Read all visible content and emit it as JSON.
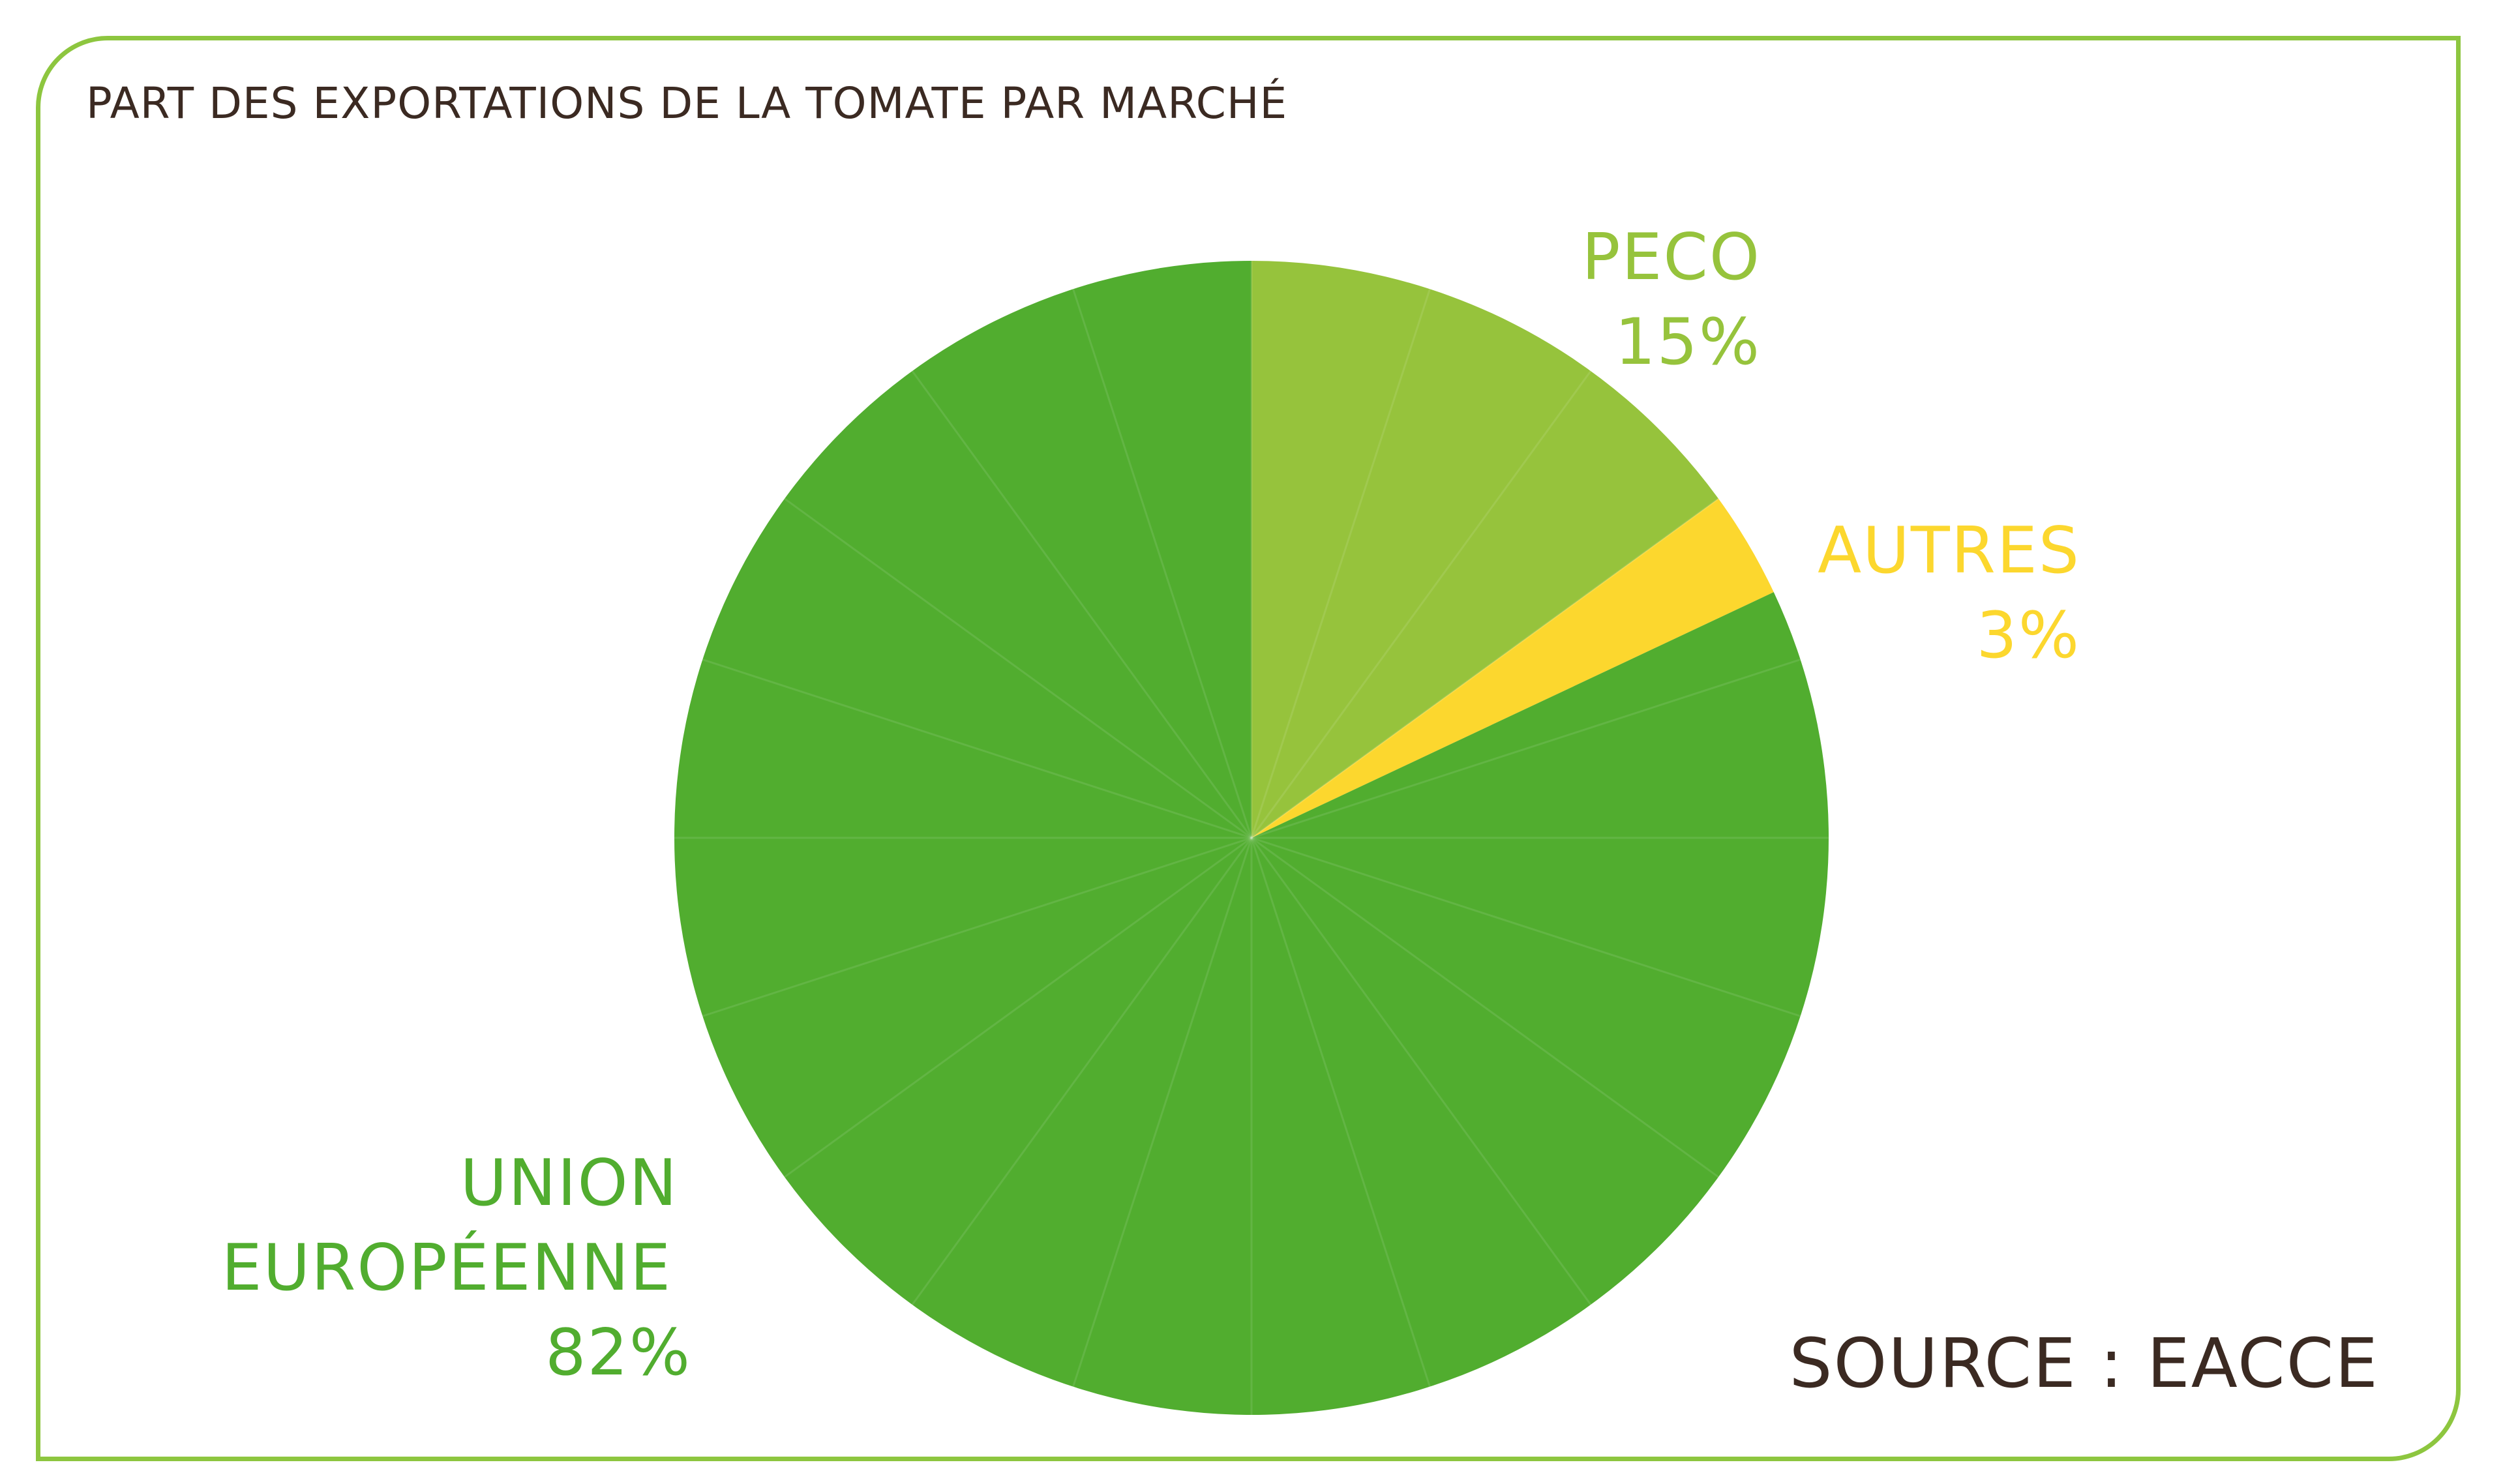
{
  "chart_data": {
    "type": "pie",
    "title": "PART DES EXPORTATIONS DE LA TOMATE PAR MARCHÉ",
    "slices": [
      {
        "label_lines": [
          "PECO"
        ],
        "value_text": "15%",
        "value": 15,
        "color": "#96c33c"
      },
      {
        "label_lines": [
          "AUTRES"
        ],
        "value_text": "3%",
        "value": 3,
        "color": "#fcd72e"
      },
      {
        "label_lines": [
          "UNION",
          "EUROPÉENNE"
        ],
        "value_text": "82%",
        "value": 82,
        "color": "#51ad2f"
      }
    ],
    "source": "SOURCE : EACCE",
    "frame_color": "#8dc63f",
    "text_color": "#3b2a22"
  }
}
